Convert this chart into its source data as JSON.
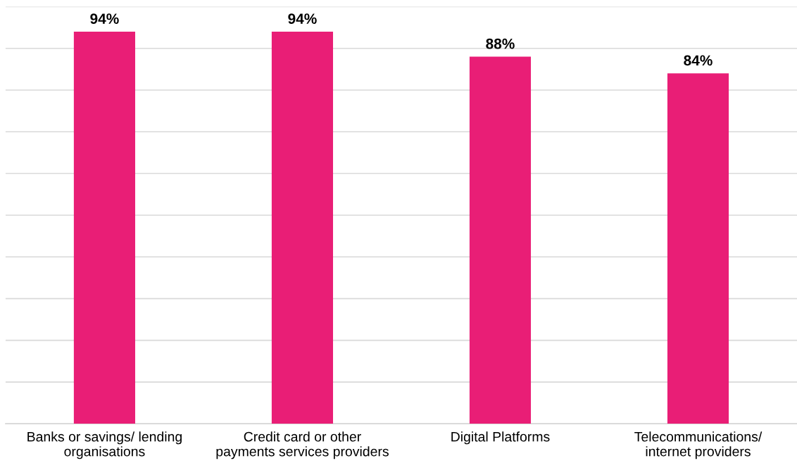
{
  "chart_data": {
    "type": "bar",
    "categories": [
      "Banks or savings/ lending\norganisations",
      "Credit card or other\npayments services providers",
      "Digital Platforms",
      "Telecommunications/\ninternet providers"
    ],
    "values": [
      94,
      94,
      88,
      84
    ],
    "value_labels": [
      "94%",
      "94%",
      "88%",
      "84%"
    ],
    "color": "#e91e76",
    "ylim": [
      0,
      100
    ],
    "yticks": [
      {
        "value": 0,
        "label": null
      },
      {
        "value": 10,
        "label": null
      },
      {
        "value": 20,
        "label": null
      },
      {
        "value": 30,
        "label": null
      },
      {
        "value": 40,
        "label": null
      },
      {
        "value": 50,
        "label": null
      },
      {
        "value": 60,
        "label": null
      },
      {
        "value": 70,
        "label": null
      },
      {
        "value": 80,
        "label": null
      },
      {
        "value": 90,
        "label": null
      },
      {
        "value": 100,
        "label": null
      }
    ],
    "tick_labels": "x",
    "grid": "y",
    "legend": false
  }
}
